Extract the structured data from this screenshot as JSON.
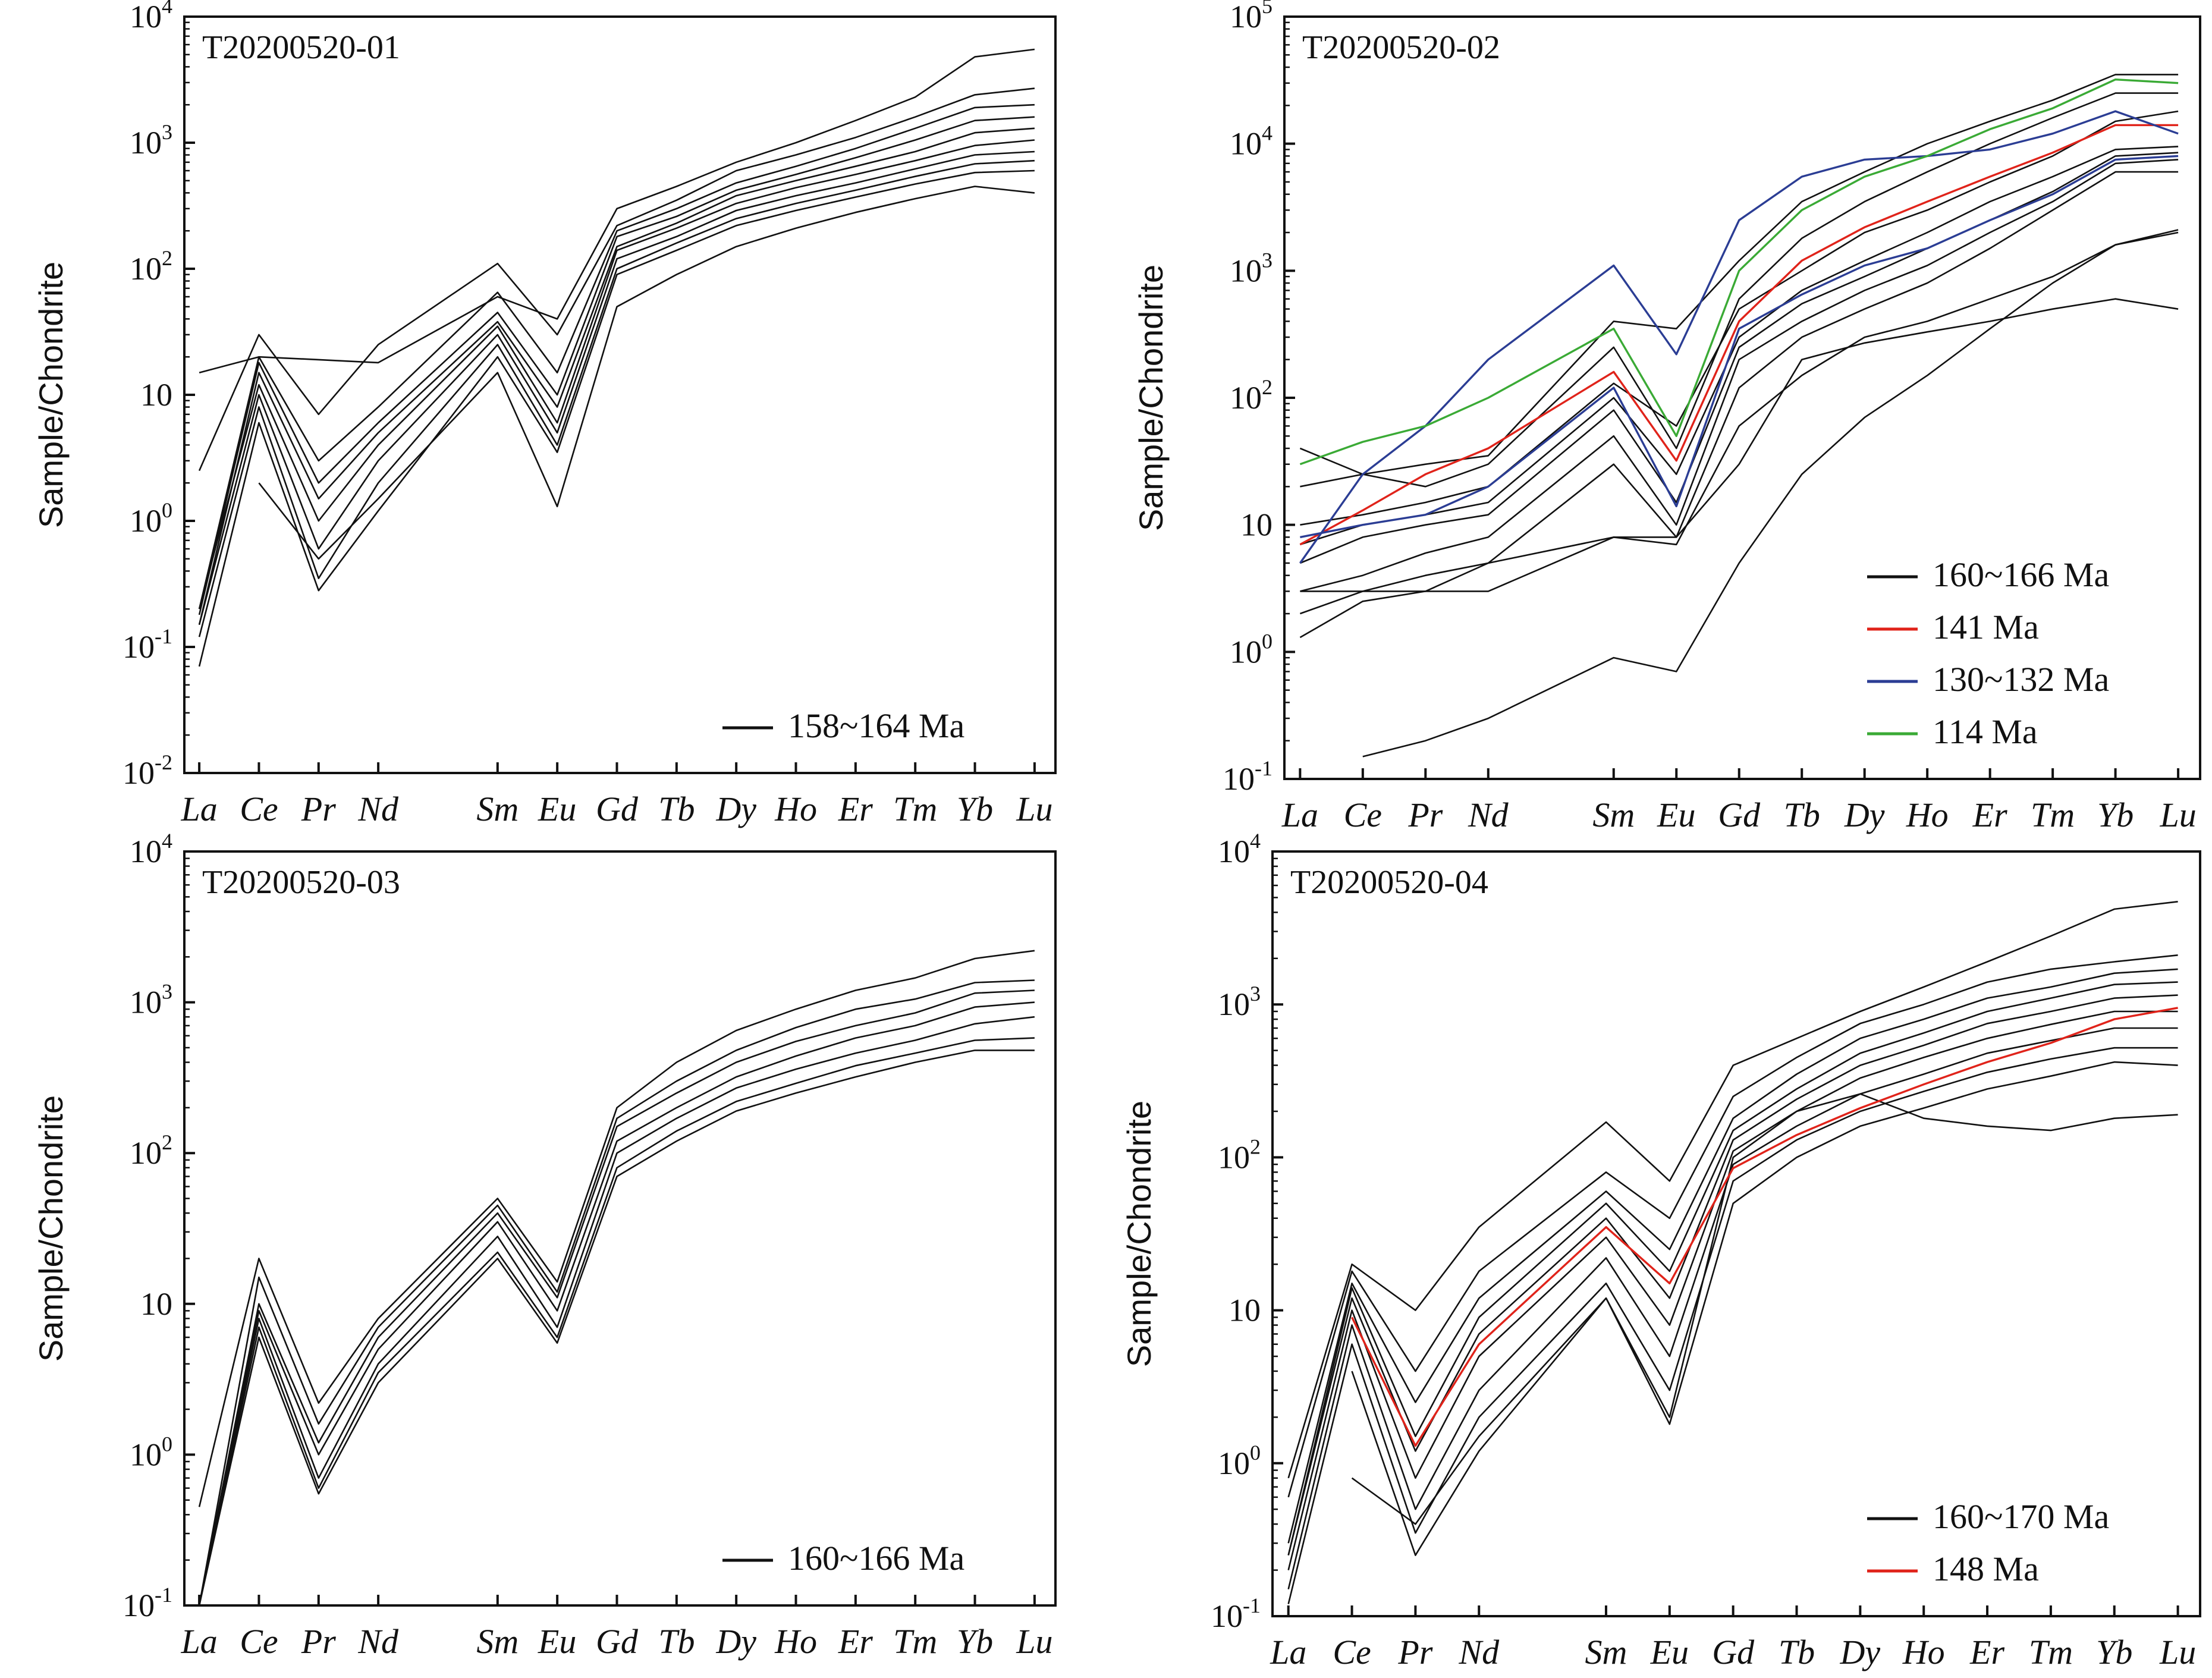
{
  "figure": {
    "elements": [
      "La",
      "Ce",
      "Pr",
      "Nd",
      "Sm",
      "Eu",
      "Gd",
      "Tb",
      "Dy",
      "Ho",
      "Er",
      "Tm",
      "Yb",
      "Lu"
    ]
  },
  "chart_data": [
    {
      "type": "line",
      "title": "T20200520-01",
      "ylabel": "Sample/Chondrite",
      "yscale": "log",
      "ylim": [
        0.01,
        10000
      ],
      "x": [
        "La",
        "Ce",
        "Pr",
        "Nd",
        "Sm",
        "Eu",
        "Gd",
        "Tb",
        "Dy",
        "Ho",
        "Er",
        "Tm",
        "Yb",
        "Lu"
      ],
      "legend": {
        "placement": "bottom-right",
        "entries": [
          {
            "label": "158~164 Ma",
            "color": "#111111"
          }
        ]
      },
      "series": [
        {
          "color": "#111111",
          "values": [
            15,
            20,
            19,
            18,
            60,
            40,
            300,
            450,
            700,
            1000,
            1500,
            2300,
            4800,
            5500
          ]
        },
        {
          "color": "#111111",
          "values": [
            2.5,
            30,
            7,
            25,
            110,
            30,
            220,
            350,
            600,
            800,
            1100,
            1600,
            2400,
            2700
          ]
        },
        {
          "color": "#111111",
          "values": [
            0.2,
            20,
            3,
            8,
            65,
            15,
            200,
            300,
            480,
            650,
            900,
            1300,
            1900,
            2000
          ]
        },
        {
          "color": "#111111",
          "values": [
            0.18,
            18,
            2,
            6,
            45,
            10,
            180,
            260,
            420,
            560,
            760,
            1050,
            1500,
            1600
          ]
        },
        {
          "color": "#111111",
          "values": [
            0.15,
            15,
            1.5,
            5,
            38,
            8,
            150,
            230,
            380,
            500,
            650,
            850,
            1200,
            1300
          ]
        },
        {
          "color": "#111111",
          "values": [
            0.2,
            12,
            1,
            4,
            35,
            6,
            140,
            210,
            330,
            440,
            560,
            720,
            950,
            1050
          ]
        },
        {
          "color": "#111111",
          "values": [
            0.15,
            10,
            0.6,
            3,
            30,
            5,
            120,
            180,
            290,
            380,
            480,
            620,
            800,
            850
          ]
        },
        {
          "color": "#111111",
          "values": [
            0.12,
            8,
            0.35,
            2,
            25,
            4,
            100,
            160,
            250,
            330,
            420,
            540,
            680,
            720
          ]
        },
        {
          "color": "#111111",
          "values": [
            0.07,
            6,
            0.28,
            1.2,
            20,
            3.5,
            90,
            140,
            220,
            290,
            370,
            470,
            580,
            600
          ]
        },
        {
          "color": "#111111",
          "values": [
            null,
            2,
            0.5,
            1.5,
            15,
            1.3,
            50,
            90,
            150,
            210,
            280,
            360,
            450,
            400
          ]
        }
      ]
    },
    {
      "type": "line",
      "title": "T20200520-02",
      "ylabel": "Sample/Chondrite",
      "yscale": "log",
      "ylim": [
        0.1,
        100000
      ],
      "x": [
        "La",
        "Ce",
        "Pr",
        "Nd",
        "Sm",
        "Eu",
        "Gd",
        "Tb",
        "Dy",
        "Ho",
        "Er",
        "Tm",
        "Yb",
        "Lu"
      ],
      "legend": {
        "placement": "bottom-right",
        "entries": [
          {
            "label": "160~166 Ma",
            "color": "#111111"
          },
          {
            "label": "141 Ma",
            "color": "#e0231a"
          },
          {
            "label": "130~132 Ma",
            "color": "#2b3d94"
          },
          {
            "label": "114 Ma",
            "color": "#3aaa35"
          }
        ]
      },
      "series": [
        {
          "color": "#111111",
          "values": [
            20,
            25,
            30,
            35,
            400,
            350,
            1200,
            3500,
            6000,
            10000,
            15000,
            22000,
            35000,
            35000
          ]
        },
        {
          "color": "#111111",
          "values": [
            40,
            25,
            20,
            30,
            250,
            40,
            600,
            1800,
            3500,
            6000,
            10000,
            16000,
            25000,
            25000
          ]
        },
        {
          "color": "#111111",
          "values": [
            10,
            12,
            15,
            20,
            130,
            60,
            500,
            1000,
            2000,
            3000,
            5000,
            8000,
            15000,
            18000
          ]
        },
        {
          "color": "#111111",
          "values": [
            7,
            10,
            12,
            15,
            100,
            25,
            300,
            700,
            1200,
            2000,
            3500,
            5500,
            9000,
            9500
          ]
        },
        {
          "color": "#111111",
          "values": [
            5,
            8,
            10,
            12,
            80,
            15,
            250,
            550,
            900,
            1500,
            2500,
            4200,
            8000,
            8500
          ]
        },
        {
          "color": "#111111",
          "values": [
            3,
            4,
            6,
            8,
            50,
            10,
            200,
            400,
            700,
            1100,
            2000,
            3500,
            7000,
            7500
          ]
        },
        {
          "color": "#111111",
          "values": [
            2,
            3,
            4,
            5,
            30,
            8,
            120,
            300,
            500,
            800,
            1500,
            3000,
            6000,
            6000
          ]
        },
        {
          "color": "#111111",
          "values": [
            1.3,
            2.5,
            3,
            3,
            8,
            7,
            60,
            150,
            300,
            400,
            600,
            900,
            1600,
            2100
          ]
        },
        {
          "color": "#111111",
          "values": [
            3,
            3,
            3,
            5,
            8,
            8,
            30,
            200,
            270,
            330,
            400,
            500,
            600,
            500
          ]
        },
        {
          "color": "#111111",
          "values": [
            null,
            0.15,
            0.2,
            0.3,
            0.9,
            0.7,
            5,
            25,
            70,
            150,
            350,
            800,
            1600,
            2000
          ]
        },
        {
          "color": "#e0231a",
          "values": [
            7,
            13,
            25,
            40,
            160,
            32,
            400,
            1200,
            2200,
            3500,
            5500,
            8500,
            14000,
            14000
          ]
        },
        {
          "color": "#2b3d94",
          "values": [
            5,
            25,
            60,
            200,
            1100,
            220,
            2500,
            5500,
            7500,
            8000,
            9000,
            12000,
            18000,
            12000
          ]
        },
        {
          "color": "#2b3d94",
          "values": [
            8,
            10,
            12,
            20,
            120,
            14,
            350,
            650,
            1100,
            1500,
            2500,
            4000,
            7500,
            8000
          ]
        },
        {
          "color": "#3aaa35",
          "values": [
            30,
            45,
            60,
            100,
            350,
            50,
            1000,
            3000,
            5500,
            8000,
            13000,
            19000,
            32000,
            30000
          ]
        }
      ]
    },
    {
      "type": "line",
      "title": "T20200520-03",
      "ylabel": "Sample/Chondrite",
      "yscale": "log",
      "ylim": [
        0.1,
        10000
      ],
      "x": [
        "La",
        "Ce",
        "Pr",
        "Nd",
        "Sm",
        "Eu",
        "Gd",
        "Tb",
        "Dy",
        "Ho",
        "Er",
        "Tm",
        "Yb",
        "Lu"
      ],
      "legend": {
        "placement": "bottom-right",
        "entries": [
          {
            "label": "160~166 Ma",
            "color": "#111111"
          }
        ]
      },
      "series": [
        {
          "color": "#111111",
          "values": [
            0.45,
            20,
            2.2,
            8,
            50,
            14,
            200,
            400,
            650,
            900,
            1200,
            1450,
            1950,
            2200
          ]
        },
        {
          "color": "#111111",
          "values": [
            0.1,
            15,
            1.6,
            7,
            45,
            12,
            170,
            300,
            480,
            680,
            900,
            1050,
            1350,
            1400
          ]
        },
        {
          "color": "#111111",
          "values": [
            0.1,
            10,
            1.2,
            6,
            40,
            11,
            150,
            250,
            400,
            550,
            700,
            850,
            1150,
            1200
          ]
        },
        {
          "color": "#111111",
          "values": [
            0.1,
            9,
            1,
            5,
            35,
            9,
            120,
            200,
            320,
            440,
            580,
            700,
            930,
            1000
          ]
        },
        {
          "color": "#111111",
          "values": [
            0.1,
            8,
            0.7,
            4,
            28,
            7,
            100,
            170,
            270,
            360,
            460,
            560,
            720,
            800
          ]
        },
        {
          "color": "#111111",
          "values": [
            0.1,
            7,
            0.6,
            3.5,
            22,
            6,
            80,
            140,
            220,
            290,
            380,
            460,
            560,
            580
          ]
        },
        {
          "color": "#111111",
          "values": [
            0.1,
            6,
            0.55,
            3,
            20,
            5.5,
            70,
            120,
            190,
            250,
            320,
            400,
            480,
            480
          ]
        }
      ]
    },
    {
      "type": "line",
      "title": "T20200520-04",
      "ylabel": "Sample/Chondrite",
      "yscale": "log",
      "ylim": [
        0.1,
        10000
      ],
      "x": [
        "La",
        "Ce",
        "Pr",
        "Nd",
        "Sm",
        "Eu",
        "Gd",
        "Tb",
        "Dy",
        "Ho",
        "Er",
        "Tm",
        "Yb",
        "Lu"
      ],
      "legend": {
        "placement": "bottom-right",
        "entries": [
          {
            "label": "160~170 Ma",
            "color": "#111111"
          },
          {
            "label": "148 Ma",
            "color": "#e0231a"
          }
        ]
      },
      "series": [
        {
          "color": "#111111",
          "values": [
            0.8,
            20,
            10,
            35,
            170,
            70,
            400,
            600,
            900,
            1300,
            1900,
            2800,
            4200,
            4700
          ]
        },
        {
          "color": "#111111",
          "values": [
            0.6,
            18,
            4,
            18,
            80,
            40,
            250,
            450,
            750,
            1000,
            1400,
            1700,
            1900,
            2100
          ]
        },
        {
          "color": "#111111",
          "values": [
            0.3,
            15,
            2.5,
            12,
            60,
            25,
            180,
            350,
            600,
            800,
            1100,
            1300,
            1600,
            1700
          ]
        },
        {
          "color": "#111111",
          "values": [
            0.25,
            14,
            1.5,
            9,
            50,
            18,
            150,
            280,
            480,
            650,
            900,
            1100,
            1350,
            1400
          ]
        },
        {
          "color": "#111111",
          "values": [
            0.25,
            12,
            1.2,
            7,
            40,
            12,
            130,
            240,
            400,
            540,
            750,
            900,
            1100,
            1150
          ]
        },
        {
          "color": "#111111",
          "values": [
            0.2,
            10,
            0.8,
            5,
            30,
            8,
            110,
            200,
            330,
            450,
            600,
            740,
            900,
            900
          ]
        },
        {
          "color": "#111111",
          "values": [
            0.15,
            8,
            0.5,
            3,
            22,
            5,
            90,
            160,
            260,
            350,
            480,
            580,
            700,
            700
          ]
        },
        {
          "color": "#111111",
          "values": [
            0.12,
            6,
            0.35,
            2,
            15,
            3,
            70,
            130,
            200,
            270,
            360,
            440,
            520,
            520
          ]
        },
        {
          "color": "#111111",
          "values": [
            null,
            4,
            0.25,
            1.2,
            12,
            1.8,
            50,
            100,
            160,
            210,
            280,
            340,
            420,
            400
          ]
        },
        {
          "color": "#111111",
          "values": [
            null,
            0.8,
            0.4,
            1.5,
            12,
            2,
            100,
            200,
            260,
            180,
            160,
            150,
            180,
            190
          ]
        },
        {
          "color": "#e0231a",
          "values": [
            null,
            9,
            1.3,
            6,
            35,
            15,
            85,
            140,
            210,
            300,
            420,
            560,
            800,
            950
          ]
        }
      ]
    }
  ]
}
